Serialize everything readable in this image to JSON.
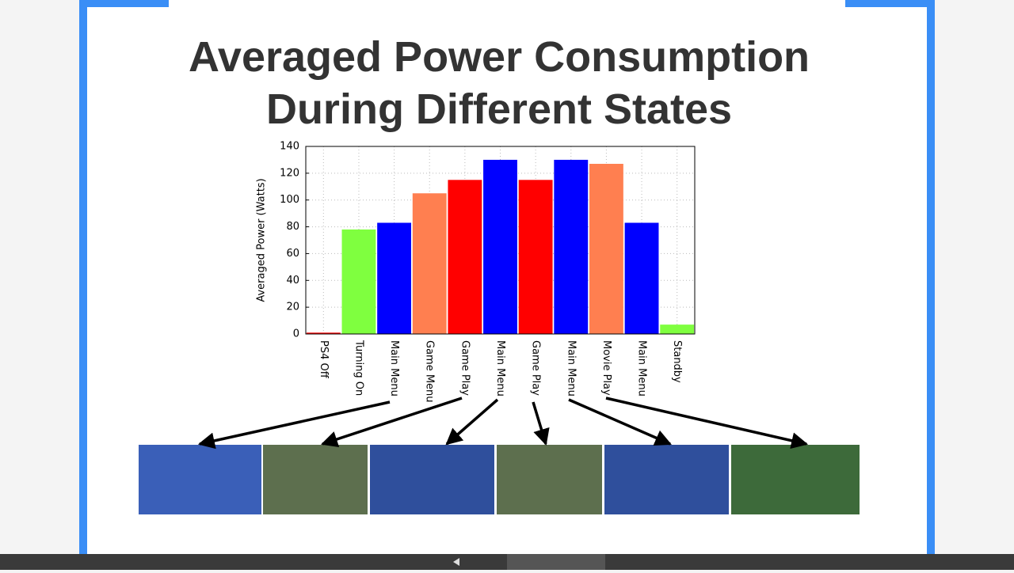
{
  "chart_data": {
    "type": "bar",
    "title": "Averaged Power Consumption During Different States",
    "ylabel": "Averaged Power (Watts)",
    "categories": [
      "PS4 Off",
      "Turning On",
      "Main Menu",
      "Game Menu",
      "Game Play",
      "Main Menu",
      "Game Play",
      "Main Menu",
      "Movie Play",
      "Main Menu",
      "Standby"
    ],
    "values": [
      1,
      78,
      83,
      105,
      115,
      130,
      115,
      130,
      127,
      83,
      7
    ],
    "colors": [
      "#ff0000",
      "#7fff3f",
      "#0000ff",
      "#ff7f50",
      "#ff0000",
      "#0000ff",
      "#ff0000",
      "#0000ff",
      "#ff7f50",
      "#0000ff",
      "#7fff3f"
    ],
    "ylim": [
      0,
      140
    ],
    "yticks": [
      0,
      20,
      40,
      60,
      80,
      100,
      120,
      140
    ],
    "grid": true
  }
}
